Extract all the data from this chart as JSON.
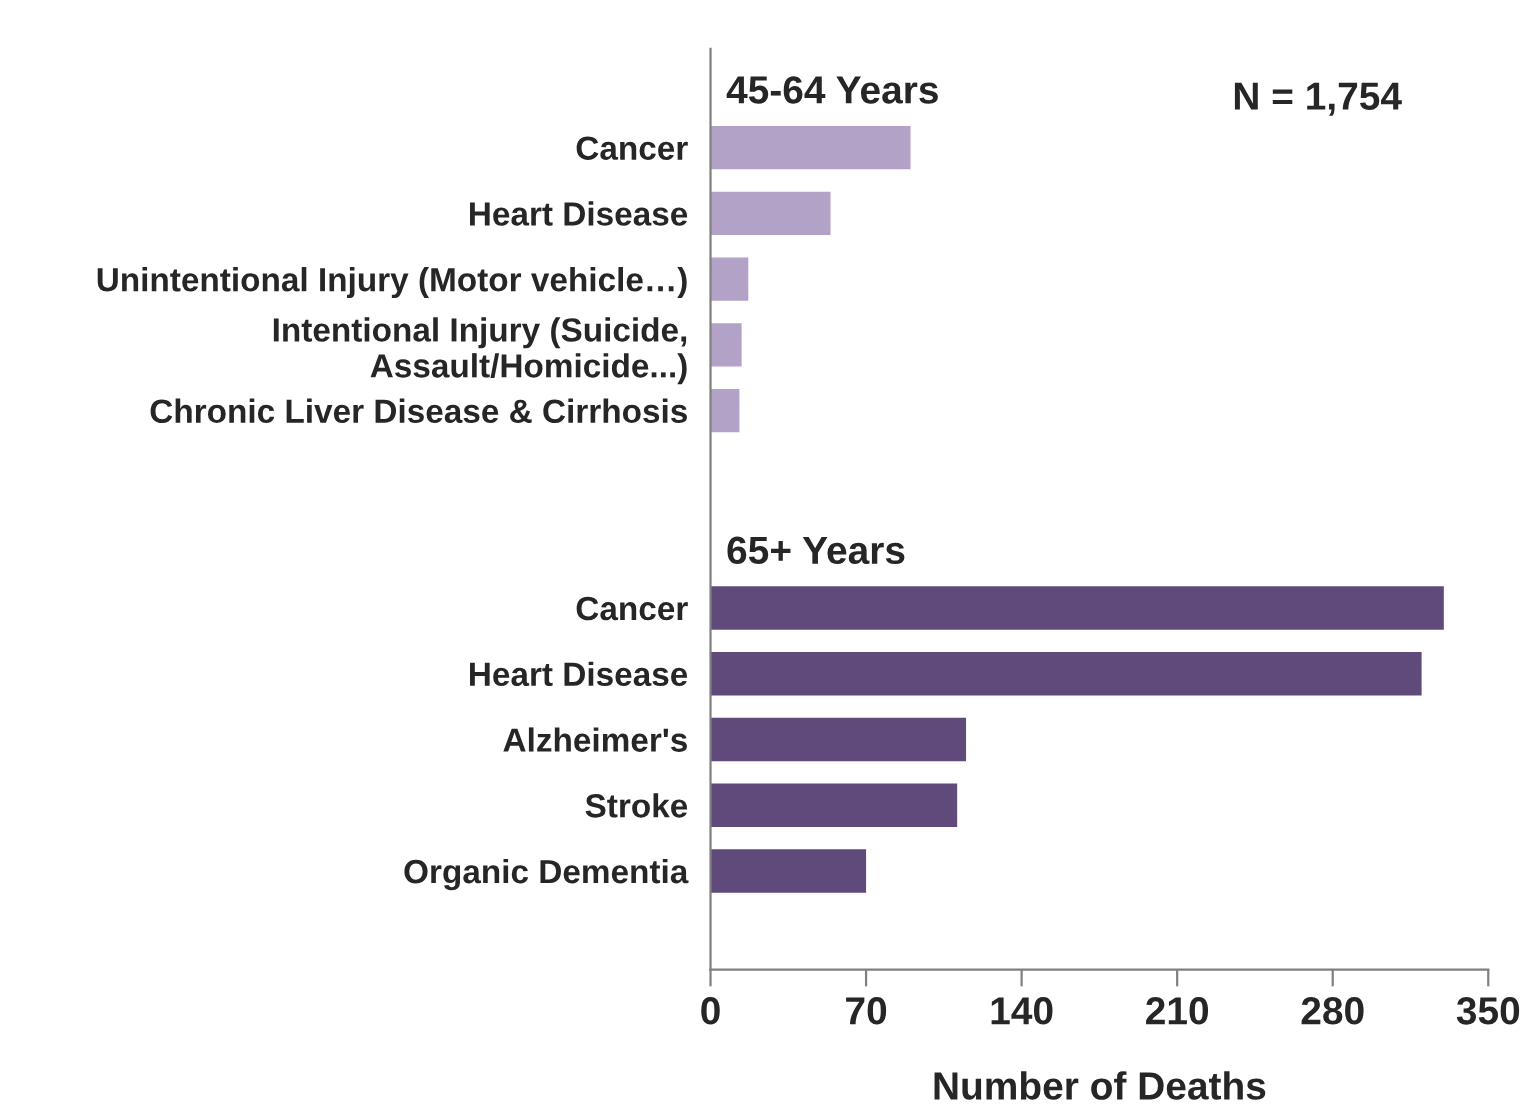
{
  "chart_data": {
    "type": "bar",
    "orientation": "horizontal",
    "xlabel": "Number of Deaths",
    "categories": [
      null,
      "Cancer",
      "Heart Disease",
      "Unintentional Injury (Motor vehicle…)",
      "Intentional Injury (Suicide,\nAssault/Homicide...)",
      "Chronic Liver Disease & Cirrhosis",
      null,
      null,
      "Cancer",
      "Heart Disease",
      "Alzheimer's",
      "Stroke",
      "Organic Dementia",
      null
    ],
    "values": [
      null,
      90,
      54,
      17,
      14,
      13,
      null,
      null,
      330,
      320,
      115,
      111,
      70,
      null
    ],
    "colors": [
      "#b3a2c7",
      "#b3a2c7",
      "#b3a2c7",
      "#b3a2c7",
      "#b3a2c7",
      "#b3a2c7",
      "#b3a2c7",
      "#604a7b",
      "#604a7b",
      "#604a7b",
      "#604a7b",
      "#604a7b",
      "#604a7b",
      "#604a7b"
    ],
    "xlim": [
      0,
      350
    ],
    "xticks": [
      0,
      70,
      140,
      210,
      280,
      350
    ],
    "grid": false,
    "legend": false,
    "annotations": [
      "45-64 Years",
      "65+ Years",
      "N = 1,754"
    ]
  }
}
